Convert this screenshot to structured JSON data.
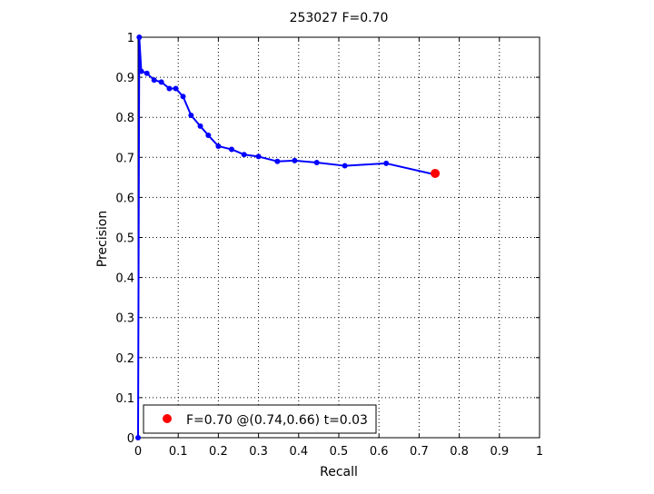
{
  "chart_data": {
    "type": "line",
    "title": "253027 F=0.70",
    "xlabel": "Recall",
    "ylabel": "Precision",
    "xlim": [
      0,
      1
    ],
    "ylim": [
      0,
      1
    ],
    "xticks": [
      0,
      0.1,
      0.2,
      0.3,
      0.4,
      0.5,
      0.6,
      0.7,
      0.8,
      0.9,
      1
    ],
    "yticks": [
      0,
      0.1,
      0.2,
      0.3,
      0.4,
      0.5,
      0.6,
      0.7,
      0.8,
      0.9,
      1
    ],
    "xtick_labels": [
      "0",
      "0.1",
      "0.2",
      "0.3",
      "0.4",
      "0.5",
      "0.6",
      "0.7",
      "0.8",
      "0.9",
      "1"
    ],
    "ytick_labels": [
      "0",
      "0.1",
      "0.2",
      "0.3",
      "0.4",
      "0.5",
      "0.6",
      "0.7",
      "0.8",
      "0.9",
      "1"
    ],
    "grid": true,
    "legend_position": "bottom-left",
    "series": [
      {
        "color": "#0000ff",
        "marker": "dot",
        "x": [
          0,
          0.003,
          0.008,
          0.022,
          0.04,
          0.058,
          0.078,
          0.094,
          0.112,
          0.132,
          0.155,
          0.175,
          0.2,
          0.233,
          0.264,
          0.3,
          0.347,
          0.39,
          0.445,
          0.515,
          0.618,
          0.74
        ],
        "y": [
          0,
          1.0,
          0.915,
          0.91,
          0.893,
          0.888,
          0.872,
          0.872,
          0.852,
          0.805,
          0.778,
          0.755,
          0.728,
          0.72,
          0.707,
          0.702,
          0.69,
          0.692,
          0.687,
          0.679,
          0.685,
          0.657
        ]
      }
    ],
    "highlight": {
      "x": 0.74,
      "y": 0.66,
      "color": "#ff0000",
      "label": "F=0.70 @(0.74,0.66) t=0.03"
    }
  }
}
